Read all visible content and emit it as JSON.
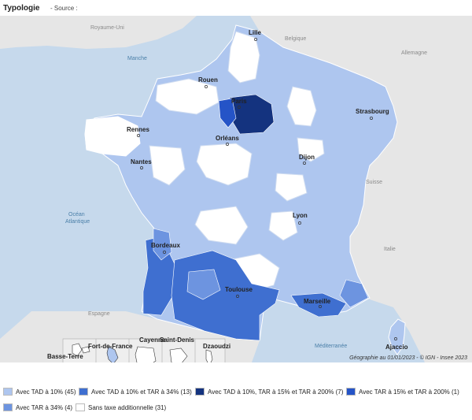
{
  "header": {
    "title": "Typologie",
    "source": "- Source :"
  },
  "credit": "Géographie au 01/01/2023 - © IGN - Insee 2023",
  "colors": {
    "sea": "#c6d9ec",
    "land": "#e6e6e6",
    "tad10": "#aec6ef",
    "tad10_tar34": "#3f6fd0",
    "tad10_tar15_200": "#14337f",
    "tar15_200": "#2554c7",
    "tar34": "#6d94e0",
    "none": "#ffffff"
  },
  "cities": [
    "Lille",
    "Rouen",
    "Paris",
    "Strasbourg",
    "Rennes",
    "Orléans",
    "Nantes",
    "Dijon",
    "Lyon",
    "Bordeaux",
    "Toulouse",
    "Marseille",
    "Ajaccio"
  ],
  "countries": [
    "Royaume-Uni",
    "Belgique",
    "Allemagne",
    "Suisse",
    "Italie",
    "Espagne"
  ],
  "seas": [
    "Manche",
    "Océan",
    "Atlantique",
    "Méditerranée"
  ],
  "overseas": [
    "Basse-Terre",
    "Fort-de-France",
    "Cayenne",
    "Saint-Denis",
    "Dzaoudzi"
  ],
  "legend": [
    {
      "label": "Avec TAD à 10% (45)",
      "color": "#aec6ef"
    },
    {
      "label": "Avec TAD à 10% et TAR à 34% (13)",
      "color": "#3f6fd0"
    },
    {
      "label": "Avec TAD à 10%, TAR à 15% et TAR à 200% (7)",
      "color": "#14337f"
    },
    {
      "label": "Avec TAR à 15% et TAR à 200% (1)",
      "color": "#2554c7"
    },
    {
      "label": "Avec TAR à 34% (4)",
      "color": "#6d94e0"
    },
    {
      "label": "Sans taxe additionnelle (31)",
      "color": "#ffffff"
    }
  ]
}
